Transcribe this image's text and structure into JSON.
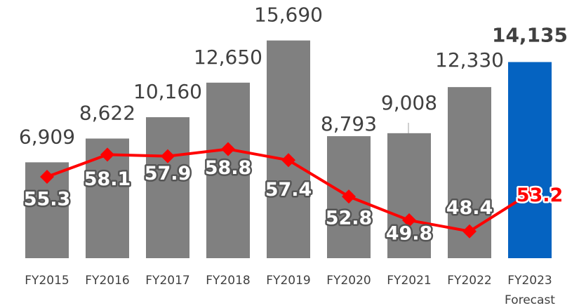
{
  "chart_data": {
    "type": "bar-line",
    "categories": [
      "FY2015",
      "FY2016",
      "FY2017",
      "FY2018",
      "FY2019",
      "FY2020",
      "FY2021",
      "FY2022",
      "FY2023"
    ],
    "annotations": [
      "Forecast"
    ],
    "ylim": [
      0,
      18000
    ],
    "y2lim": [
      45,
      76.6
    ],
    "series": [
      {
        "type": "bar",
        "colors": [
          "#808080",
          "#808080",
          "#808080",
          "#808080",
          "#808080",
          "#808080",
          "#808080",
          "#808080",
          "#0563c1"
        ],
        "values": [
          6909,
          8622,
          10160,
          12650,
          15690,
          8793,
          9008,
          12330,
          14135
        ],
        "value_labels": [
          "6,909",
          "8,622",
          "10,160",
          "12,650",
          "15,690",
          "8,793",
          "9,008",
          "12,330",
          "14,135"
        ]
      },
      {
        "type": "line",
        "axis": "y2",
        "color": "#ff0000",
        "values": [
          55.3,
          58.1,
          57.9,
          58.8,
          57.4,
          52.8,
          49.8,
          48.4,
          53.2
        ]
      }
    ]
  }
}
